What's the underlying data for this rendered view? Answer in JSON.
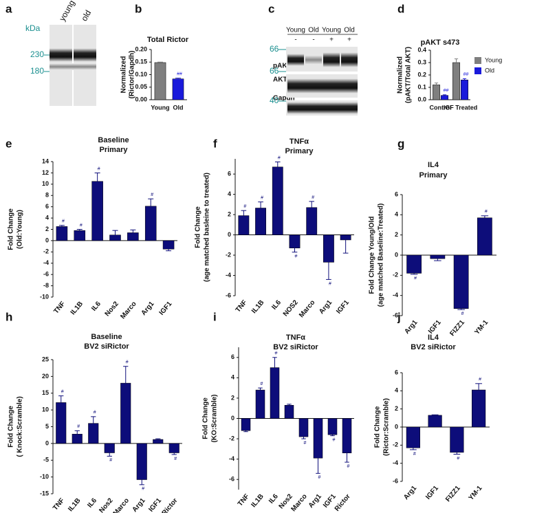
{
  "blots": {
    "a": {
      "panel": "a",
      "unit": "kDa",
      "lanes": [
        "young",
        "old"
      ],
      "markers": [
        "230",
        "180"
      ]
    },
    "c": {
      "panel": "c",
      "lanes": [
        "Young",
        "Old",
        "Young",
        "Old"
      ],
      "treatments": [
        "-",
        "-",
        "+",
        "+"
      ],
      "rows": [
        "pAKT",
        "AKT",
        "Gapdh"
      ],
      "markers": [
        "66",
        "66",
        "40"
      ]
    }
  },
  "chart_data": [
    {
      "type": "bar",
      "panel": "b",
      "title": [
        "Total Rictor"
      ],
      "ylabel": [
        "Normalized",
        "(Rictor/Gapdh)"
      ],
      "categories": [
        "Young",
        "Old"
      ],
      "values": [
        0.148,
        0.083
      ],
      "errors": [
        0.002,
        0.003
      ],
      "marks": [
        null,
        "##"
      ],
      "colors": [
        "#7f7f7f",
        "#1a1adb"
      ],
      "ylim": [
        0,
        0.2
      ],
      "yticks": [
        {
          "value": 0,
          "label": "0.00"
        },
        {
          "value": 0.05,
          "label": "0.05"
        },
        {
          "value": 0.1,
          "label": "0.10"
        },
        {
          "value": 0.15,
          "label": "0.15"
        },
        {
          "value": 0.2,
          "label": "0.20"
        }
      ]
    },
    {
      "type": "bar",
      "panel": "d",
      "title": [
        "pAKT s473"
      ],
      "ylabel": [
        "Normalized",
        "(pAKT/Total AKT)"
      ],
      "categories": [
        "Control",
        "IGF Treated"
      ],
      "series": [
        {
          "name": "Young",
          "color": "#7f7f7f",
          "values": [
            0.12,
            0.3
          ],
          "errors": [
            0.015,
            0.03
          ],
          "marks": [
            null,
            null
          ]
        },
        {
          "name": "Old",
          "color": "#1a1adb",
          "values": [
            0.035,
            0.16
          ],
          "errors": [
            0.005,
            0.01
          ],
          "marks": [
            "##",
            "##"
          ]
        }
      ],
      "ylim": [
        0,
        0.4
      ],
      "yticks": [
        {
          "value": 0,
          "label": "0.0"
        },
        {
          "value": 0.1,
          "label": "0.1"
        },
        {
          "value": 0.2,
          "label": "0.2"
        },
        {
          "value": 0.3,
          "label": "0.3"
        },
        {
          "value": 0.4,
          "label": "0.4"
        }
      ],
      "legend": "upper right"
    },
    {
      "type": "bar",
      "panel": "e",
      "title": [
        "Baseline",
        "Primary"
      ],
      "ylabel": [
        "Fold Change",
        "(Old:Young)"
      ],
      "categories": [
        "TNF",
        "IL1B",
        "IL6",
        "Nos2",
        "Marco",
        "Arg1",
        "IGF1"
      ],
      "values": [
        2.5,
        1.8,
        10.5,
        1.0,
        1.4,
        6.1,
        -1.5
      ],
      "errors": [
        0.2,
        0.2,
        1.5,
        0.8,
        0.5,
        1.3,
        0.3
      ],
      "marks": [
        "#",
        "#",
        "#",
        null,
        null,
        "#",
        null
      ],
      "color": "#0d0d7a",
      "ylim": [
        -10,
        14
      ],
      "yticks": [
        -10,
        -8,
        -6,
        -4,
        -2,
        0,
        2,
        4,
        6,
        8,
        10,
        12,
        14
      ]
    },
    {
      "type": "bar",
      "panel": "f",
      "title": [
        "TNFα",
        "Primary"
      ],
      "ylabel": [
        "Fold Change",
        "(age matched basleine to treated)"
      ],
      "categories": [
        "TNF",
        "IL1B",
        "IL6",
        "NOS2",
        "Marco",
        "Arg1",
        "IGF1"
      ],
      "values": [
        1.9,
        2.65,
        6.7,
        -1.3,
        2.7,
        -2.7,
        -0.5
      ],
      "errors": [
        0.5,
        0.6,
        0.5,
        0.4,
        0.6,
        1.7,
        1.3
      ],
      "marks": [
        "#",
        "#",
        "#",
        "#",
        "#",
        "#",
        null
      ],
      "color": "#0d0d7a",
      "ylim": [
        -6,
        7.5
      ],
      "yticks": [
        -6,
        -4,
        -2,
        0,
        2,
        4,
        6
      ]
    },
    {
      "type": "bar",
      "panel": "g",
      "title": [
        "IL4",
        "Primary"
      ],
      "ylabel": [
        "Fold Change Young/Old",
        "(age matched Baseline:Treated)"
      ],
      "categories": [
        "Arg1",
        "IGF1",
        "FIZZ1",
        "YM-1"
      ],
      "values": [
        -1.8,
        -0.35,
        -5.3,
        3.7
      ],
      "errors": [
        0.1,
        0.2,
        0.1,
        0.2
      ],
      "marks": [
        "#",
        null,
        "#",
        "#"
      ],
      "color": "#0d0d7a",
      "ylim": [
        -6,
        6
      ],
      "yticks": [
        -6,
        -4,
        -2,
        0,
        2,
        4,
        6
      ]
    },
    {
      "type": "bar",
      "panel": "h",
      "title": [
        "Baseline",
        "BV2 siRictor"
      ],
      "ylabel": [
        "Fold Change",
        "( Knock:Scramble)"
      ],
      "categories": [
        "TNF",
        "IL1B",
        "IL6",
        "Nos2",
        "Marco",
        "Arg1",
        "IGF1",
        "Rictor"
      ],
      "values": [
        12.2,
        2.8,
        6.0,
        -2.8,
        18,
        -10.8,
        1.2,
        -2.8
      ],
      "errors": [
        2,
        1,
        2,
        1,
        5,
        1.5,
        0.2,
        0.5
      ],
      "marks": [
        "#",
        "#",
        "#",
        "#",
        "#",
        "#",
        null,
        "#"
      ],
      "color": "#0d0d7a",
      "ylim": [
        -15,
        25
      ],
      "yticks": [
        -15,
        -10,
        -5,
        0,
        5,
        10,
        15,
        20,
        25
      ]
    },
    {
      "type": "bar",
      "panel": "i",
      "title": [
        "TNFα",
        "BV2 siRictor"
      ],
      "ylabel": [
        "Fold Change",
        "(KO:Scramble)"
      ],
      "categories": [
        "TNF",
        "IL1B",
        "IL6",
        "Nos2",
        "Marco",
        "Arg1",
        "IGF1",
        "Rictor"
      ],
      "values": [
        -1.2,
        2.8,
        5.0,
        1.3,
        -1.8,
        -3.9,
        -1.6,
        -3.4
      ],
      "errors": [
        0.1,
        0.2,
        1.0,
        0.1,
        0.2,
        1.5,
        0.1,
        0.9
      ],
      "marks": [
        null,
        "#",
        "#",
        null,
        "#",
        "#",
        "#",
        "#"
      ],
      "color": "#0d0d7a",
      "ylim": [
        -7,
        7
      ],
      "yticks": [
        -6,
        -4,
        -2,
        0,
        2,
        4,
        6
      ]
    },
    {
      "type": "bar",
      "panel": "j",
      "title": [
        "IL4",
        "BV2 siRictor"
      ],
      "ylabel": [
        "Fold Change",
        "(Rictor:Scramble)"
      ],
      "categories": [
        "Arg1",
        "IGF1",
        "FIZZ1",
        "YM-1"
      ],
      "values": [
        -2.3,
        1.3,
        -2.8,
        4.1
      ],
      "errors": [
        0.2,
        0.05,
        0.2,
        0.7
      ],
      "marks": [
        "#",
        null,
        "#",
        "#"
      ],
      "color": "#0d0d7a",
      "ylim": [
        -6,
        6
      ],
      "yticks": [
        -6,
        -4,
        -2,
        0,
        2,
        4,
        6
      ]
    }
  ]
}
